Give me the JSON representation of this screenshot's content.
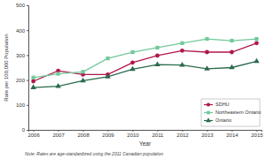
{
  "chart_data": {
    "type": "line",
    "x_label": "Year",
    "y_label": "Rate per 100,000 Population",
    "note": "Note: Rates are age-standardized using the 2011 Canadian population",
    "categories": [
      "2006",
      "2007",
      "2008",
      "2009",
      "2010",
      "2011",
      "2012",
      "2013",
      "2014",
      "2015"
    ],
    "series": [
      {
        "name": "SDHU",
        "color": "#b0174a",
        "marker": "circle",
        "values": [
          195,
          237,
          222,
          222,
          270,
          298,
          318,
          312,
          312,
          348
        ]
      },
      {
        "name": "Northeastern Ontario",
        "color": "#72c99a",
        "marker": "square",
        "values": [
          210,
          225,
          233,
          287,
          312,
          330,
          348,
          365,
          358,
          365
        ]
      },
      {
        "name": "Ontario",
        "color": "#2b6a4c",
        "marker": "triangle",
        "values": [
          170,
          175,
          197,
          213,
          243,
          262,
          260,
          245,
          250,
          275
        ]
      }
    ],
    "ylim": [
      0,
      500
    ],
    "yticks": [
      0,
      100,
      200,
      300,
      400,
      500
    ],
    "grid": false,
    "legend": "lower right"
  }
}
